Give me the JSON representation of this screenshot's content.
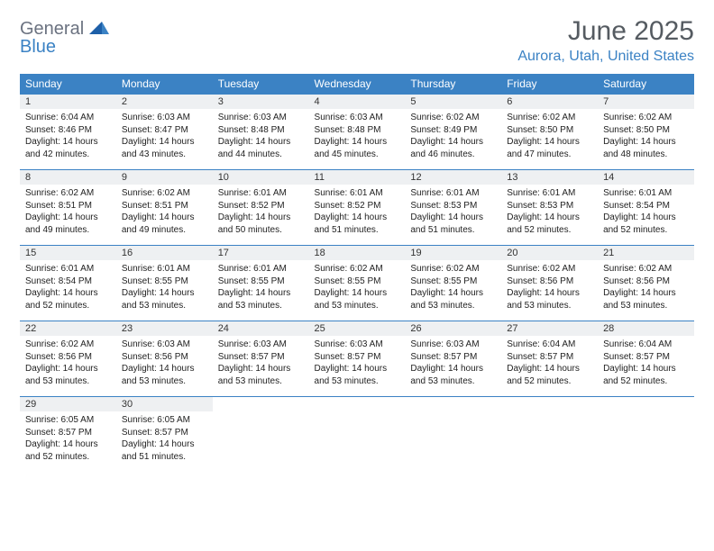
{
  "logo": {
    "general": "General",
    "blue": "Blue"
  },
  "title": "June 2025",
  "location": "Aurora, Utah, United States",
  "colors": {
    "header_bg": "#3b82c4",
    "header_text": "#ffffff",
    "daynum_bg": "#eef0f2",
    "divider": "#3b82c4",
    "title_color": "#555b61",
    "location_color": "#3b82c4"
  },
  "day_headers": [
    "Sunday",
    "Monday",
    "Tuesday",
    "Wednesday",
    "Thursday",
    "Friday",
    "Saturday"
  ],
  "weeks": [
    [
      {
        "n": "1",
        "sunrise": "6:04 AM",
        "sunset": "8:46 PM",
        "daylight": "14 hours and 42 minutes."
      },
      {
        "n": "2",
        "sunrise": "6:03 AM",
        "sunset": "8:47 PM",
        "daylight": "14 hours and 43 minutes."
      },
      {
        "n": "3",
        "sunrise": "6:03 AM",
        "sunset": "8:48 PM",
        "daylight": "14 hours and 44 minutes."
      },
      {
        "n": "4",
        "sunrise": "6:03 AM",
        "sunset": "8:48 PM",
        "daylight": "14 hours and 45 minutes."
      },
      {
        "n": "5",
        "sunrise": "6:02 AM",
        "sunset": "8:49 PM",
        "daylight": "14 hours and 46 minutes."
      },
      {
        "n": "6",
        "sunrise": "6:02 AM",
        "sunset": "8:50 PM",
        "daylight": "14 hours and 47 minutes."
      },
      {
        "n": "7",
        "sunrise": "6:02 AM",
        "sunset": "8:50 PM",
        "daylight": "14 hours and 48 minutes."
      }
    ],
    [
      {
        "n": "8",
        "sunrise": "6:02 AM",
        "sunset": "8:51 PM",
        "daylight": "14 hours and 49 minutes."
      },
      {
        "n": "9",
        "sunrise": "6:02 AM",
        "sunset": "8:51 PM",
        "daylight": "14 hours and 49 minutes."
      },
      {
        "n": "10",
        "sunrise": "6:01 AM",
        "sunset": "8:52 PM",
        "daylight": "14 hours and 50 minutes."
      },
      {
        "n": "11",
        "sunrise": "6:01 AM",
        "sunset": "8:52 PM",
        "daylight": "14 hours and 51 minutes."
      },
      {
        "n": "12",
        "sunrise": "6:01 AM",
        "sunset": "8:53 PM",
        "daylight": "14 hours and 51 minutes."
      },
      {
        "n": "13",
        "sunrise": "6:01 AM",
        "sunset": "8:53 PM",
        "daylight": "14 hours and 52 minutes."
      },
      {
        "n": "14",
        "sunrise": "6:01 AM",
        "sunset": "8:54 PM",
        "daylight": "14 hours and 52 minutes."
      }
    ],
    [
      {
        "n": "15",
        "sunrise": "6:01 AM",
        "sunset": "8:54 PM",
        "daylight": "14 hours and 52 minutes."
      },
      {
        "n": "16",
        "sunrise": "6:01 AM",
        "sunset": "8:55 PM",
        "daylight": "14 hours and 53 minutes."
      },
      {
        "n": "17",
        "sunrise": "6:01 AM",
        "sunset": "8:55 PM",
        "daylight": "14 hours and 53 minutes."
      },
      {
        "n": "18",
        "sunrise": "6:02 AM",
        "sunset": "8:55 PM",
        "daylight": "14 hours and 53 minutes."
      },
      {
        "n": "19",
        "sunrise": "6:02 AM",
        "sunset": "8:55 PM",
        "daylight": "14 hours and 53 minutes."
      },
      {
        "n": "20",
        "sunrise": "6:02 AM",
        "sunset": "8:56 PM",
        "daylight": "14 hours and 53 minutes."
      },
      {
        "n": "21",
        "sunrise": "6:02 AM",
        "sunset": "8:56 PM",
        "daylight": "14 hours and 53 minutes."
      }
    ],
    [
      {
        "n": "22",
        "sunrise": "6:02 AM",
        "sunset": "8:56 PM",
        "daylight": "14 hours and 53 minutes."
      },
      {
        "n": "23",
        "sunrise": "6:03 AM",
        "sunset": "8:56 PM",
        "daylight": "14 hours and 53 minutes."
      },
      {
        "n": "24",
        "sunrise": "6:03 AM",
        "sunset": "8:57 PM",
        "daylight": "14 hours and 53 minutes."
      },
      {
        "n": "25",
        "sunrise": "6:03 AM",
        "sunset": "8:57 PM",
        "daylight": "14 hours and 53 minutes."
      },
      {
        "n": "26",
        "sunrise": "6:03 AM",
        "sunset": "8:57 PM",
        "daylight": "14 hours and 53 minutes."
      },
      {
        "n": "27",
        "sunrise": "6:04 AM",
        "sunset": "8:57 PM",
        "daylight": "14 hours and 52 minutes."
      },
      {
        "n": "28",
        "sunrise": "6:04 AM",
        "sunset": "8:57 PM",
        "daylight": "14 hours and 52 minutes."
      }
    ],
    [
      {
        "n": "29",
        "sunrise": "6:05 AM",
        "sunset": "8:57 PM",
        "daylight": "14 hours and 52 minutes."
      },
      {
        "n": "30",
        "sunrise": "6:05 AM",
        "sunset": "8:57 PM",
        "daylight": "14 hours and 51 minutes."
      },
      null,
      null,
      null,
      null,
      null
    ]
  ],
  "labels": {
    "sunrise": "Sunrise:",
    "sunset": "Sunset:",
    "daylight": "Daylight:"
  }
}
